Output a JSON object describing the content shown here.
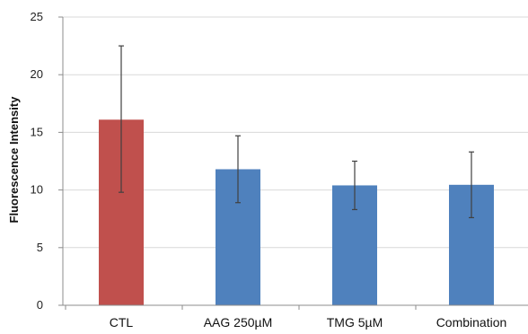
{
  "chart_data": {
    "type": "bar",
    "title": "",
    "xlabel": "",
    "ylabel": "Fluorescence Intensity",
    "categories": [
      "CTL",
      "AAG 250µM",
      "TMG 5µM",
      "Combination"
    ],
    "values": [
      16.1,
      11.8,
      10.4,
      10.45
    ],
    "error_bars": [
      {
        "low": 9.8,
        "high": 22.5
      },
      {
        "low": 8.9,
        "high": 14.7
      },
      {
        "low": 8.3,
        "high": 12.5
      },
      {
        "low": 7.6,
        "high": 13.3
      }
    ],
    "bar_colors": [
      "#c0504d",
      "#4f81bd",
      "#4f81bd",
      "#4f81bd"
    ],
    "ylim": [
      0,
      25
    ],
    "yticks": [
      "0",
      "5",
      "10",
      "15",
      "20",
      "25"
    ],
    "grid": "horizontal",
    "legend": "none"
  },
  "colors": {
    "grid": "#d9d9d9",
    "axis": "#8c8c8c",
    "error_bar": "#404040"
  }
}
